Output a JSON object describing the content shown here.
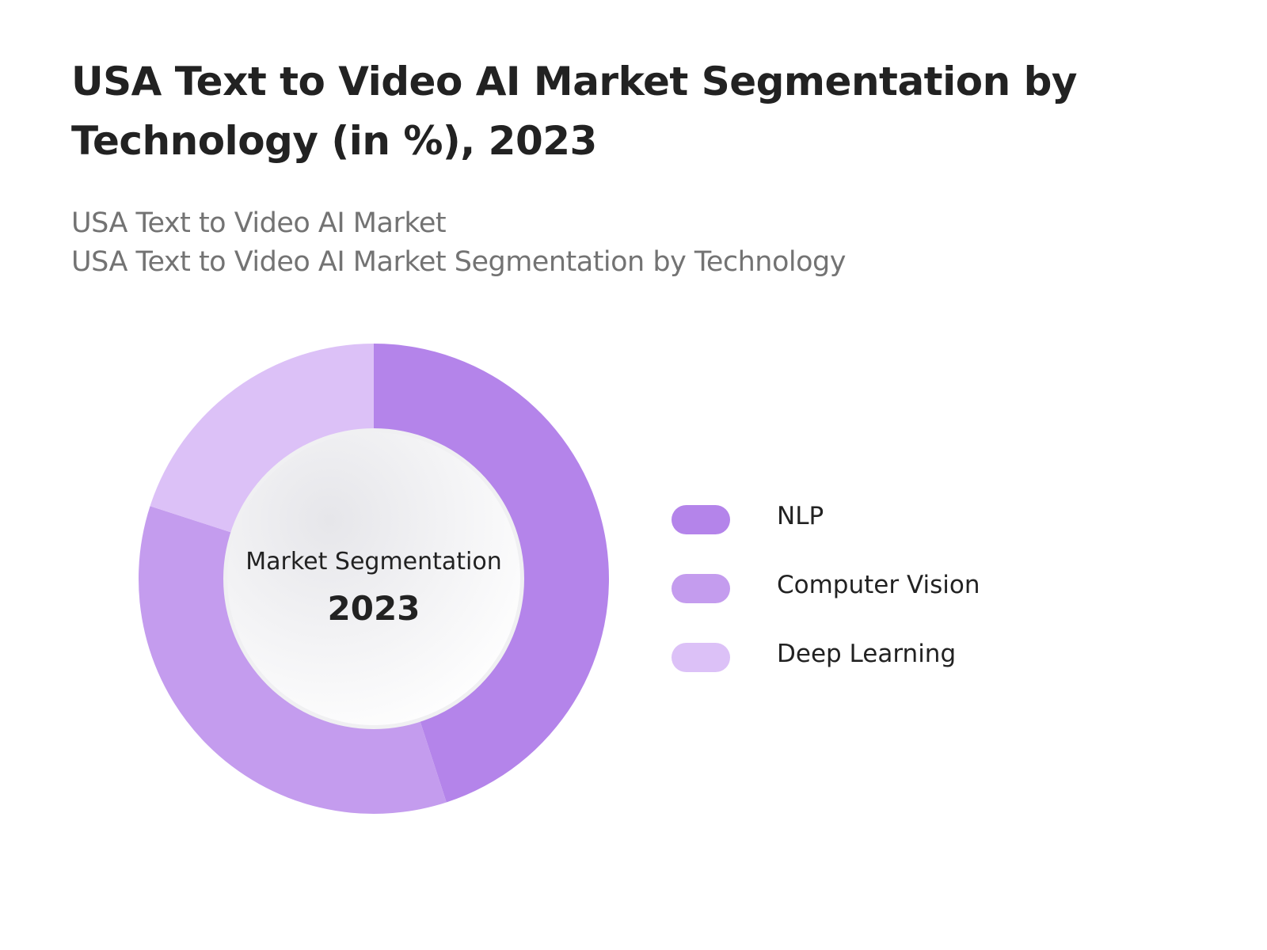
{
  "title": "USA Text to Video AI Market Segmentation by Technology (in %), 2023",
  "subtitle": {
    "line1": "USA Text to Video AI Market",
    "line2": "USA Text to Video AI Market Segmentation by Technology"
  },
  "center": {
    "label": "Market Segmentation",
    "year": "2023"
  },
  "legend": [
    {
      "label": "NLP",
      "color": "#b484ea"
    },
    {
      "label": "Computer Vision",
      "color": "#c49cee"
    },
    {
      "label": "Deep Learning",
      "color": "#dcc1f7"
    }
  ],
  "chart_data": {
    "type": "pie",
    "title": "USA Text to Video AI Market Segmentation by Technology (in %), 2023",
    "subtitle": "USA Text to Video AI Market / USA Text to Video AI Market Segmentation by Technology",
    "categories": [
      "NLP",
      "Computer Vision",
      "Deep Learning"
    ],
    "values": [
      45,
      35,
      20
    ],
    "colors": [
      "#b484ea",
      "#c49cee",
      "#dcc1f7"
    ],
    "donut": true,
    "center_label": "Market Segmentation 2023",
    "legend_position": "right",
    "xlabel": "",
    "ylabel": ""
  }
}
